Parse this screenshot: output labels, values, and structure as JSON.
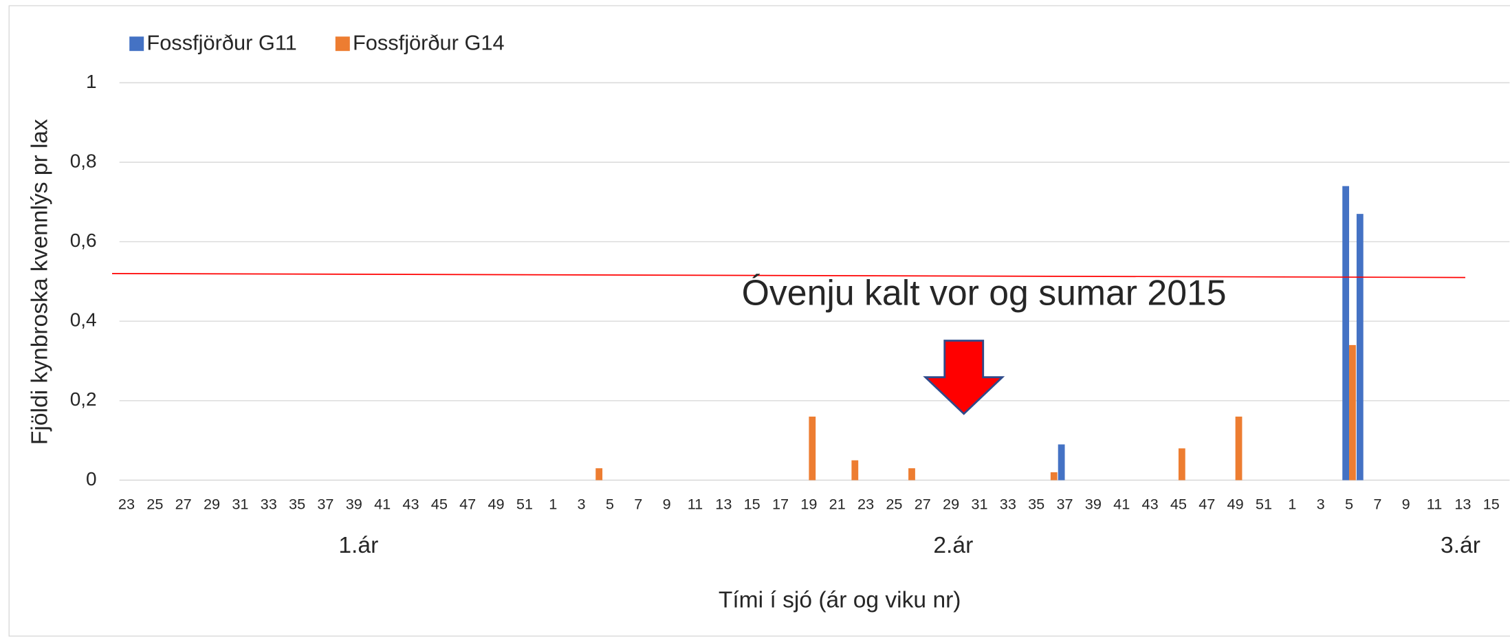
{
  "chart_data": {
    "type": "bar",
    "y_axis_label": "Fjöldi kynbroska kvennlýs pr lax",
    "x_axis_label": "Tími í sjó (ár og viku nr)",
    "annotation": "Óvenju kalt vor og sumar 2015",
    "x_groups": [
      "1.ár",
      "2.ár",
      "3.ár"
    ],
    "categories": [
      "23",
      null,
      "25",
      null,
      "27",
      null,
      "29",
      null,
      "31",
      null,
      "33",
      null,
      "35",
      null,
      "37",
      null,
      "39",
      null,
      "41",
      null,
      "43",
      null,
      "45",
      null,
      "47",
      null,
      "49",
      null,
      "51",
      null,
      "1",
      null,
      "3",
      null,
      "5",
      null,
      "7",
      null,
      "9",
      null,
      "11",
      null,
      "13",
      null,
      "15",
      null,
      "17",
      null,
      "19",
      null,
      "21",
      null,
      "23",
      null,
      "25",
      null,
      "27",
      null,
      "29",
      null,
      "31",
      null,
      "33",
      null,
      "35",
      null,
      "37",
      null,
      "39",
      null,
      "41",
      null,
      "43",
      null,
      "45",
      null,
      "47",
      null,
      "49",
      null,
      "51",
      null,
      "1",
      null,
      "3",
      null,
      "5",
      null,
      "7",
      null,
      "9",
      null,
      "11",
      null,
      "13",
      null,
      "15"
    ],
    "series": [
      {
        "name": "Fossfjörður G11",
        "color": "#4472c4",
        "values": [
          0,
          0,
          0,
          0,
          0,
          0,
          0,
          0,
          0,
          0,
          0,
          0,
          0,
          0,
          0,
          0,
          0,
          0,
          0,
          0,
          0,
          0,
          0,
          0,
          0,
          0,
          0,
          0,
          0,
          0,
          0,
          0,
          0,
          0,
          0,
          0,
          0,
          0,
          0,
          0,
          0,
          0,
          0,
          0,
          0,
          0,
          0,
          0,
          0,
          0,
          0,
          0,
          0,
          0,
          0,
          0,
          0,
          0,
          0,
          0,
          0,
          0,
          0,
          0,
          0,
          0,
          0.09,
          0,
          0,
          0,
          0,
          0,
          0,
          0,
          0,
          0,
          0,
          0,
          0,
          0,
          0,
          0,
          0,
          0,
          0,
          0,
          0.74,
          0.67,
          0,
          0,
          0,
          0,
          0,
          0,
          0,
          0,
          0
        ]
      },
      {
        "name": "Fossfjörður G14",
        "color": "#ed7d31",
        "values": [
          0,
          0,
          0,
          0,
          0,
          0,
          0,
          0,
          0,
          0,
          0,
          0,
          0,
          0,
          0,
          0,
          0,
          0,
          0,
          0,
          0,
          0,
          0,
          0,
          0,
          0,
          0,
          0,
          0,
          0,
          0,
          0,
          0,
          0.03,
          0,
          0,
          0,
          0,
          0,
          0,
          0,
          0,
          0,
          0,
          0,
          0,
          0,
          0,
          0.16,
          0,
          0,
          0.05,
          0,
          0,
          0,
          0.03,
          0,
          0,
          0,
          0,
          0,
          0,
          0,
          0,
          0,
          0.02,
          0,
          0,
          0,
          0,
          0,
          0,
          0,
          0,
          0.08,
          0,
          0,
          0,
          0.16,
          0,
          0,
          0,
          0,
          0,
          0,
          0,
          0.34,
          0,
          0,
          0,
          0,
          0,
          0,
          0,
          0,
          0,
          0
        ]
      }
    ],
    "reference_line": {
      "start": 0.52,
      "end": 0.51,
      "color": "#ff0000"
    },
    "ylim": [
      0,
      1
    ],
    "yticks": [
      0,
      {
        "value": 0.2,
        "label": "0,2"
      },
      {
        "value": 0.4,
        "label": "0,4"
      },
      {
        "value": 0.6,
        "label": "0,6"
      },
      {
        "value": 0.8,
        "label": "0,8"
      },
      1
    ],
    "grid": true,
    "legend": "top-left"
  }
}
